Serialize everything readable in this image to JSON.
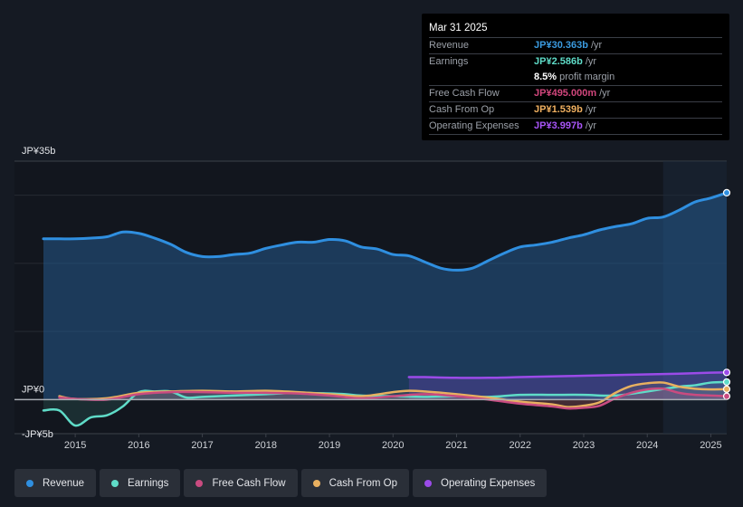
{
  "tooltip": {
    "date": "Mar 31 2025",
    "rows": [
      {
        "label": "Revenue",
        "value": "JP¥30.363b",
        "unit": "/yr",
        "color": "#3b9be0"
      },
      {
        "label": "Earnings",
        "value": "JP¥2.586b",
        "unit": "/yr",
        "color": "#5fdcc8"
      },
      {
        "label": "",
        "value": "8.5%",
        "unit": "profit margin",
        "color": "#ffffff"
      },
      {
        "label": "Free Cash Flow",
        "value": "JP¥495.000m",
        "unit": "/yr",
        "color": "#d1467c"
      },
      {
        "label": "Cash From Op",
        "value": "JP¥1.539b",
        "unit": "/yr",
        "color": "#f0b060"
      },
      {
        "label": "Operating Expenses",
        "value": "JP¥3.997b",
        "unit": "/yr",
        "color": "#a855f7"
      }
    ]
  },
  "legend": [
    {
      "label": "Revenue",
      "color": "#2f8fe0"
    },
    {
      "label": "Earnings",
      "color": "#5fdcc8"
    },
    {
      "label": "Free Cash Flow",
      "color": "#c94b80"
    },
    {
      "label": "Cash From Op",
      "color": "#e8b060"
    },
    {
      "label": "Operating Expenses",
      "color": "#9b4be8"
    }
  ],
  "chart_data": {
    "type": "line",
    "title": "",
    "xlabel": "",
    "ylabel": "",
    "ylim": [
      -5,
      35
    ],
    "y_tick_labels": [
      "JP¥35b",
      "JP¥0",
      "-JP¥5b"
    ],
    "y_ticks": [
      35,
      0,
      -5
    ],
    "x_ticks": [
      2015,
      2016,
      2017,
      2018,
      2019,
      2020,
      2021,
      2022,
      2023,
      2024,
      2025
    ],
    "x_tick_labels": [
      "2015",
      "2016",
      "2017",
      "2018",
      "2019",
      "2020",
      "2021",
      "2022",
      "2023",
      "2024",
      "2025"
    ],
    "xlim": [
      2014.5,
      2025.25
    ],
    "forecast_shade_from": 2024.25,
    "grid": true,
    "units": "JP¥ billions",
    "series": [
      {
        "name": "Revenue",
        "color": "#2f8fe0",
        "x": [
          2014.5,
          2014.75,
          2015.0,
          2015.25,
          2015.5,
          2015.75,
          2016.0,
          2016.25,
          2016.5,
          2016.75,
          2017.0,
          2017.25,
          2017.5,
          2017.75,
          2018.0,
          2018.25,
          2018.5,
          2018.75,
          2019.0,
          2019.25,
          2019.5,
          2019.75,
          2020.0,
          2020.25,
          2020.5,
          2020.75,
          2021.0,
          2021.25,
          2021.5,
          2021.75,
          2022.0,
          2022.25,
          2022.5,
          2022.75,
          2023.0,
          2023.25,
          2023.5,
          2023.75,
          2024.0,
          2024.25,
          2024.5,
          2024.75,
          2025.0,
          2025.25
        ],
        "values": [
          23.6,
          23.6,
          23.6,
          23.7,
          23.9,
          24.6,
          24.4,
          23.7,
          22.8,
          21.6,
          21.0,
          21.0,
          21.3,
          21.5,
          22.2,
          22.7,
          23.1,
          23.1,
          23.5,
          23.3,
          22.4,
          22.1,
          21.3,
          21.1,
          20.2,
          19.3,
          19.0,
          19.3,
          20.4,
          21.5,
          22.4,
          22.7,
          23.1,
          23.7,
          24.2,
          24.9,
          25.4,
          25.8,
          26.6,
          26.8,
          27.8,
          29.0,
          29.6,
          30.363
        ]
      },
      {
        "name": "Earnings",
        "color": "#5fdcc8",
        "x": [
          2014.5,
          2014.75,
          2015.0,
          2015.25,
          2015.5,
          2015.75,
          2016.0,
          2016.25,
          2016.5,
          2016.75,
          2017.0,
          2017.5,
          2018.0,
          2018.5,
          2019.0,
          2019.25,
          2019.5,
          2020.0,
          2020.5,
          2021.0,
          2021.5,
          2022.0,
          2022.5,
          2023.0,
          2023.5,
          2024.0,
          2024.5,
          2024.75,
          2025.0,
          2025.25
        ],
        "values": [
          -1.6,
          -1.6,
          -3.8,
          -2.6,
          -2.3,
          -1.0,
          1.1,
          1.2,
          1.2,
          0.3,
          0.4,
          0.6,
          0.8,
          1.0,
          0.9,
          0.8,
          0.6,
          0.5,
          0.4,
          0.5,
          0.4,
          0.7,
          0.7,
          0.7,
          0.6,
          1.2,
          1.9,
          2.1,
          2.5,
          2.586
        ]
      },
      {
        "name": "Free Cash Flow",
        "color": "#c94b80",
        "x": [
          2014.75,
          2015.0,
          2015.5,
          2016.0,
          2016.5,
          2017.0,
          2017.5,
          2018.0,
          2018.5,
          2019.0,
          2019.5,
          2020.0,
          2020.5,
          2021.0,
          2021.5,
          2022.0,
          2022.5,
          2022.75,
          2023.0,
          2023.25,
          2023.5,
          2023.75,
          2024.0,
          2024.25,
          2024.5,
          2024.75,
          2025.0,
          2025.25
        ],
        "values": [
          0.3,
          0.1,
          0.0,
          0.8,
          1.1,
          1.1,
          1.0,
          1.0,
          0.9,
          0.6,
          0.2,
          0.5,
          0.8,
          0.5,
          0.0,
          -0.6,
          -1.0,
          -1.3,
          -1.2,
          -0.9,
          0.2,
          1.0,
          1.5,
          1.6,
          1.0,
          0.7,
          0.6,
          0.495
        ]
      },
      {
        "name": "Cash From Op",
        "color": "#e8b060",
        "x": [
          2014.75,
          2015.0,
          2015.5,
          2016.0,
          2016.5,
          2017.0,
          2017.5,
          2018.0,
          2018.5,
          2019.0,
          2019.5,
          2020.0,
          2020.25,
          2020.5,
          2021.0,
          2021.5,
          2022.0,
          2022.5,
          2022.75,
          2023.0,
          2023.25,
          2023.5,
          2023.75,
          2024.0,
          2024.25,
          2024.5,
          2024.75,
          2025.0,
          2025.25
        ],
        "values": [
          0.5,
          0.1,
          0.2,
          1.0,
          1.2,
          1.3,
          1.2,
          1.3,
          1.1,
          0.8,
          0.5,
          1.1,
          1.3,
          1.2,
          0.8,
          0.3,
          -0.3,
          -0.7,
          -1.1,
          -0.9,
          -0.4,
          1.0,
          2.0,
          2.4,
          2.5,
          1.9,
          1.6,
          1.5,
          1.539
        ]
      },
      {
        "name": "Operating Expenses",
        "color": "#9b4be8",
        "x": [
          2020.25,
          2020.5,
          2021.0,
          2021.5,
          2022.0,
          2022.5,
          2023.0,
          2023.5,
          2024.0,
          2024.5,
          2025.0,
          2025.25
        ],
        "values": [
          3.3,
          3.3,
          3.2,
          3.2,
          3.3,
          3.4,
          3.5,
          3.6,
          3.7,
          3.8,
          3.95,
          3.997
        ]
      }
    ]
  }
}
